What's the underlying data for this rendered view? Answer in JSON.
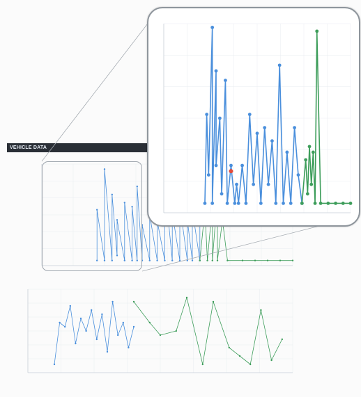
{
  "app": {
    "title": "VEHICLE DATA",
    "subtitle": ""
  },
  "panels": {
    "top_title": "",
    "bottom_title": ""
  },
  "colors": {
    "blue": "#4a8fdc",
    "green": "#3d9d5a",
    "red": "#e24a3a",
    "grid": "#e9edf1",
    "axis": "#c8d0d8"
  },
  "chart_data": [
    {
      "type": "line",
      "id": "top-chart",
      "title": "",
      "ylim": [
        0,
        1
      ],
      "xlim": [
        0,
        1
      ],
      "series": [
        {
          "color": "blue",
          "x": [
            0.22,
            0.22,
            0.25,
            0.25,
            0.28,
            0.28,
            0.3,
            0.3,
            0.33,
            0.33,
            0.36,
            0.36,
            0.38,
            0.38,
            0.4,
            0.4,
            0.43,
            0.43,
            0.46,
            0.46,
            0.49,
            0.49,
            0.52,
            0.52,
            0.55,
            0.55,
            0.58,
            0.58,
            0.6,
            0.6,
            0.63,
            0.63
          ],
          "y": [
            0.05,
            0.55,
            0.05,
            0.95,
            0.05,
            0.7,
            0.1,
            0.45,
            0.05,
            0.62,
            0.05,
            0.58,
            0.05,
            0.78,
            0.05,
            0.4,
            0.05,
            0.5,
            0.05,
            0.44,
            0.05,
            0.82,
            0.05,
            0.52,
            0.05,
            0.6,
            0.05,
            0.45,
            0.05,
            0.55,
            0.05,
            0.5
          ]
        },
        {
          "color": "green",
          "x": [
            0.63,
            0.65,
            0.66,
            0.68,
            0.68,
            0.7,
            0.7,
            0.72,
            0.74,
            0.8,
            0.85,
            0.9,
            0.95,
            1.0
          ],
          "y": [
            0.05,
            0.55,
            0.05,
            0.6,
            0.05,
            0.7,
            0.05,
            0.45,
            0.05,
            0.05,
            0.05,
            0.05,
            0.05,
            0.05
          ]
        }
      ]
    },
    {
      "type": "line",
      "id": "bottom-chart",
      "title": "",
      "ylim": [
        0,
        1
      ],
      "xlim": [
        0,
        1
      ],
      "series": [
        {
          "color": "blue",
          "x": [
            0.1,
            0.12,
            0.14,
            0.16,
            0.18,
            0.2,
            0.22,
            0.24,
            0.26,
            0.28,
            0.3,
            0.32,
            0.34,
            0.36,
            0.38,
            0.4
          ],
          "y": [
            0.1,
            0.6,
            0.55,
            0.8,
            0.35,
            0.65,
            0.5,
            0.75,
            0.4,
            0.7,
            0.25,
            0.85,
            0.45,
            0.6,
            0.3,
            0.55
          ]
        },
        {
          "color": "green",
          "x": [
            0.4,
            0.46,
            0.5,
            0.56,
            0.6,
            0.66,
            0.7,
            0.76,
            0.8,
            0.84,
            0.88,
            0.92,
            0.96
          ],
          "y": [
            0.85,
            0.6,
            0.45,
            0.5,
            0.9,
            0.1,
            0.85,
            0.3,
            0.2,
            0.1,
            0.75,
            0.15,
            0.4
          ]
        }
      ]
    },
    {
      "type": "line",
      "id": "zoom-chart",
      "title": "",
      "ylim": [
        0,
        1
      ],
      "xlim": [
        0,
        1
      ],
      "series": [
        {
          "color": "blue",
          "x": [
            0.22,
            0.23,
            0.24,
            0.26,
            0.26,
            0.28,
            0.28,
            0.3,
            0.31,
            0.33,
            0.34,
            0.36,
            0.38,
            0.39,
            0.4,
            0.42,
            0.44,
            0.46,
            0.48,
            0.5,
            0.52,
            0.54,
            0.56,
            0.58,
            0.6,
            0.62,
            0.64,
            0.66,
            0.68,
            0.7,
            0.72,
            0.74
          ],
          "y": [
            0.05,
            0.52,
            0.2,
            0.98,
            0.05,
            0.75,
            0.25,
            0.5,
            0.1,
            0.7,
            0.05,
            0.25,
            0.05,
            0.15,
            0.05,
            0.25,
            0.05,
            0.52,
            0.15,
            0.42,
            0.05,
            0.45,
            0.15,
            0.38,
            0.05,
            0.78,
            0.05,
            0.32,
            0.05,
            0.45,
            0.2,
            0.05
          ]
        },
        {
          "color": "green",
          "x": [
            0.74,
            0.76,
            0.77,
            0.78,
            0.79,
            0.8,
            0.81,
            0.82,
            0.84,
            0.88,
            0.92,
            0.96,
            1.0
          ],
          "y": [
            0.05,
            0.28,
            0.1,
            0.35,
            0.15,
            0.32,
            0.05,
            0.96,
            0.05,
            0.05,
            0.05,
            0.05,
            0.05
          ]
        }
      ],
      "highlight_point": {
        "x": 0.36,
        "y": 0.22,
        "color": "red"
      }
    }
  ]
}
